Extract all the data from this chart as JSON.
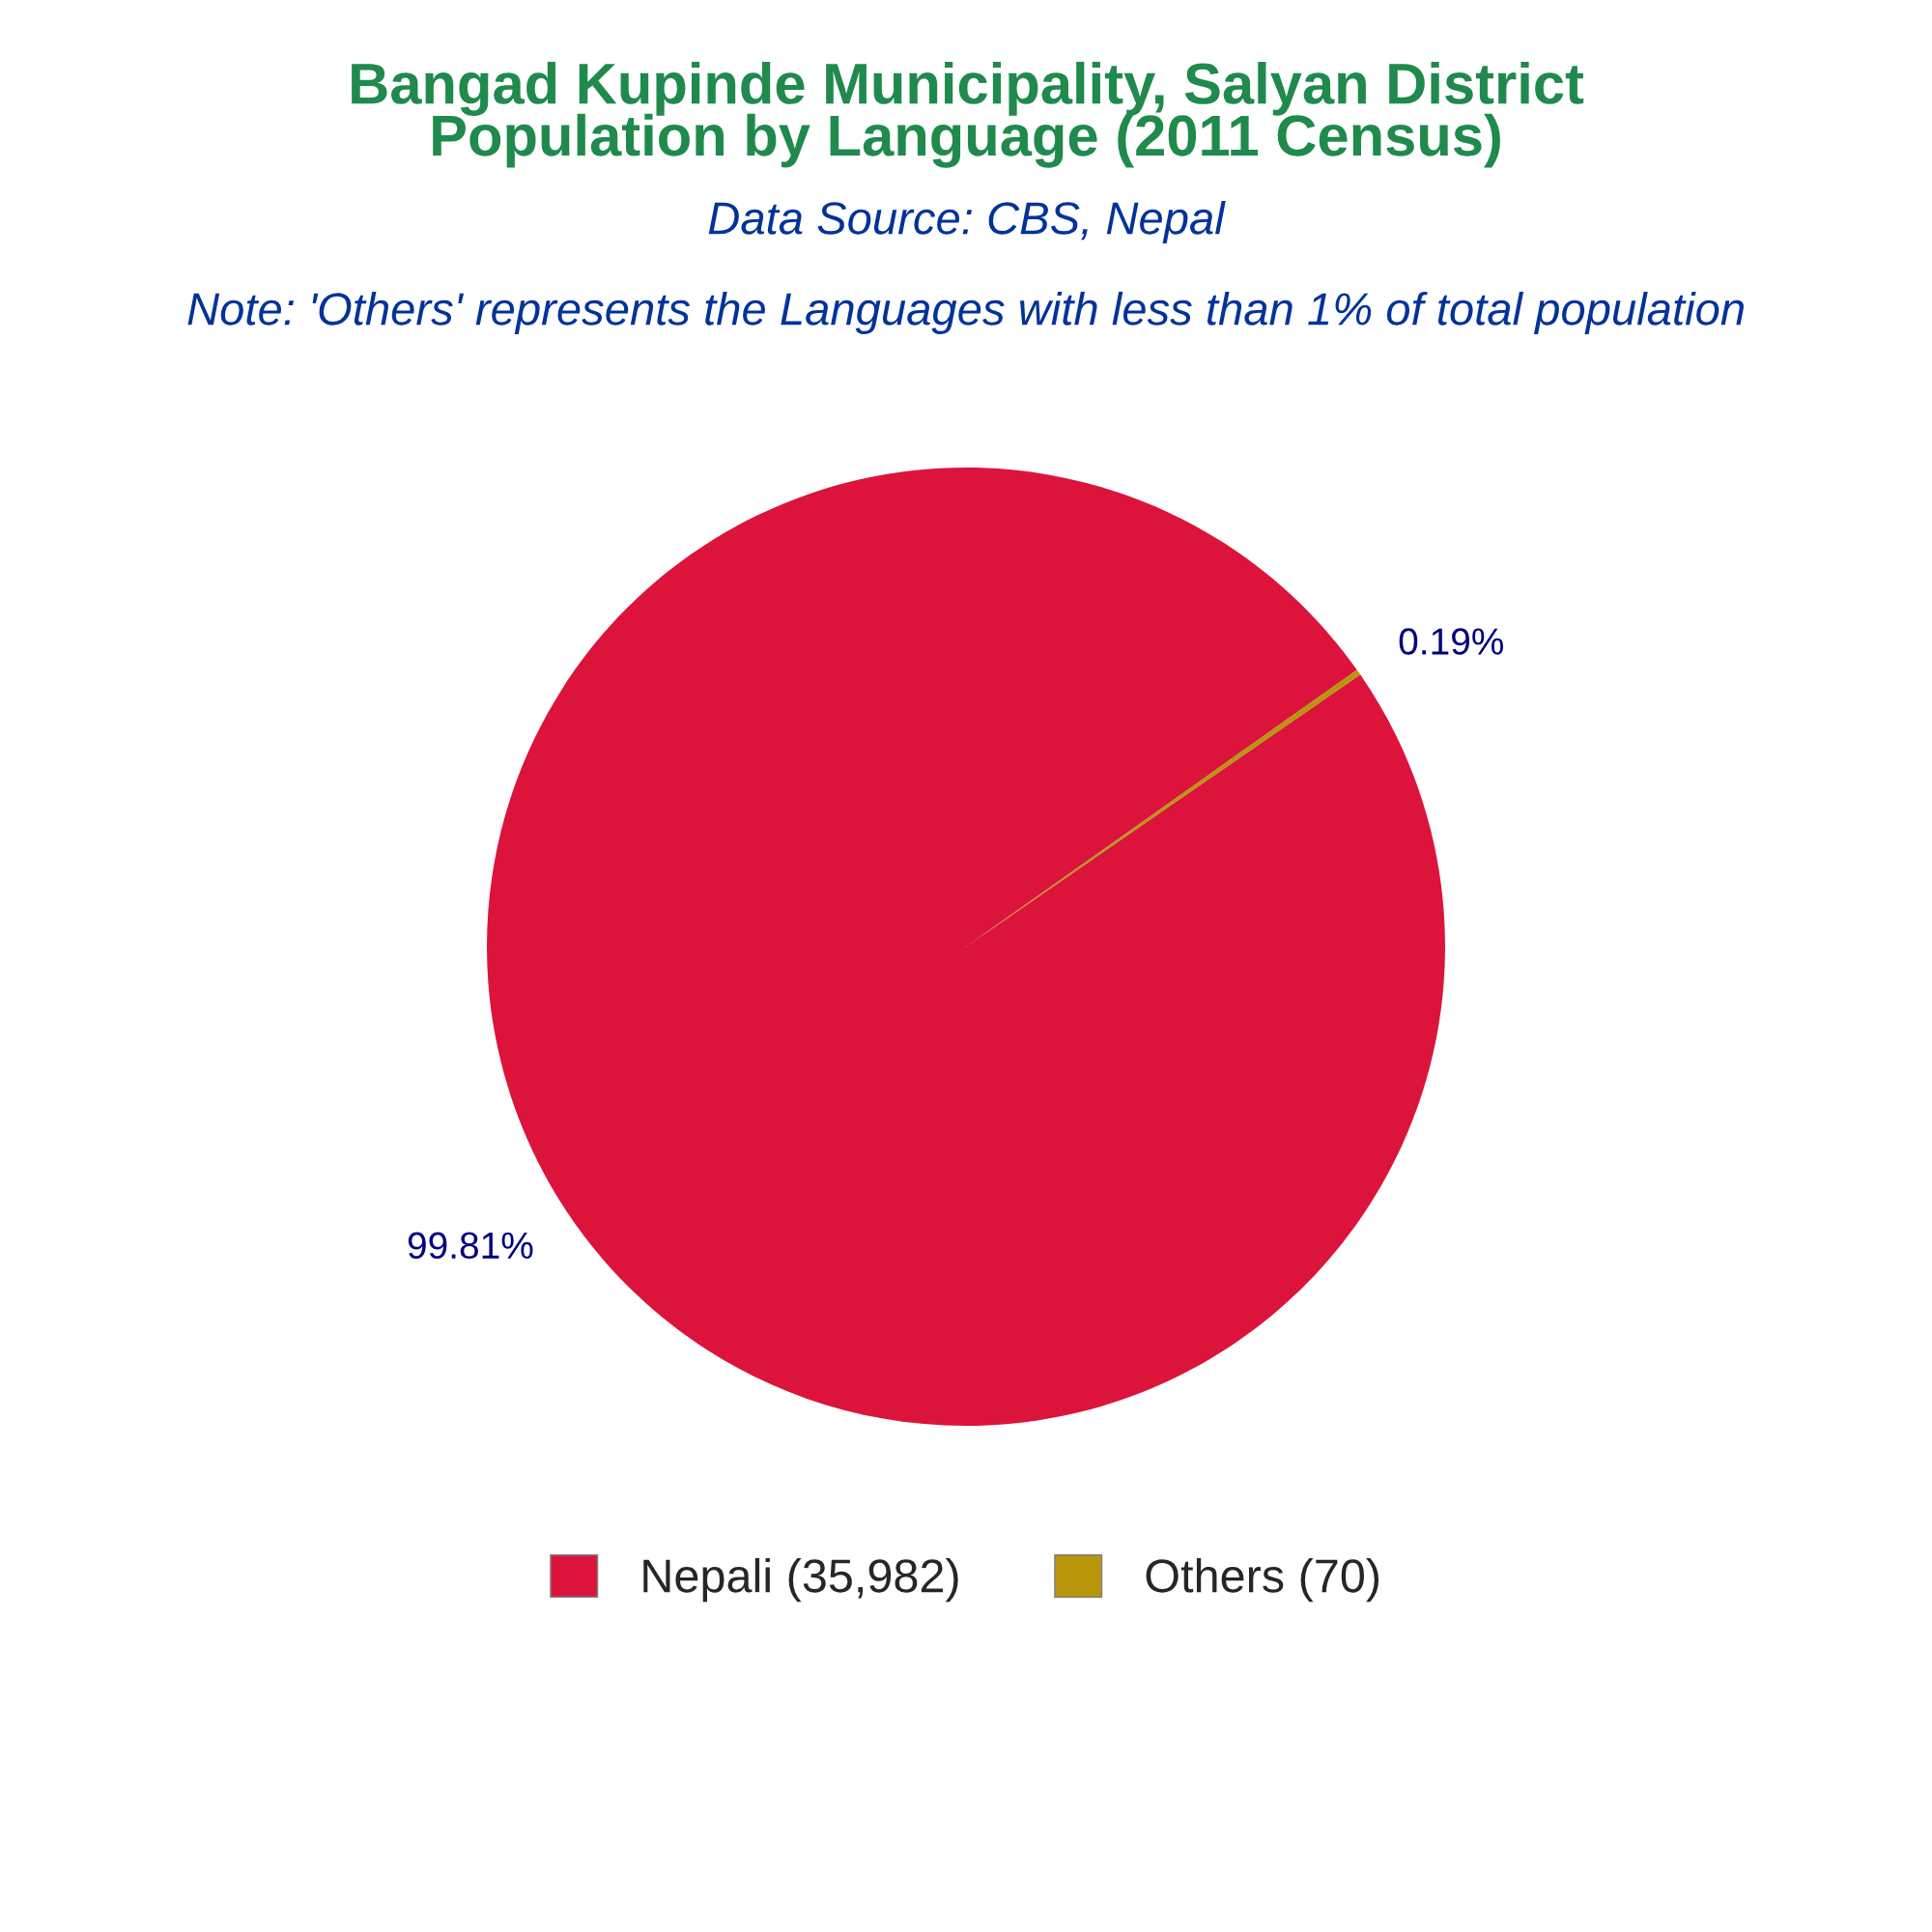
{
  "chart_data": {
    "type": "pie",
    "title": "Bangad Kupinde Municipality, Salyan District\nPopulation by Language (2011 Census)",
    "subtitle": "Data Source: CBS, Nepal",
    "annotations": [
      "Note: 'Others' represents the Languages with less than 1% of total population"
    ],
    "categories": [
      "Nepali (35,982)",
      "Others (70)"
    ],
    "values": [
      99.81,
      0.19
    ],
    "colors": [
      "#dc143c",
      "#b8960b"
    ],
    "value_labels": [
      "99.81%",
      "0.19%"
    ],
    "legend": "bottom"
  }
}
